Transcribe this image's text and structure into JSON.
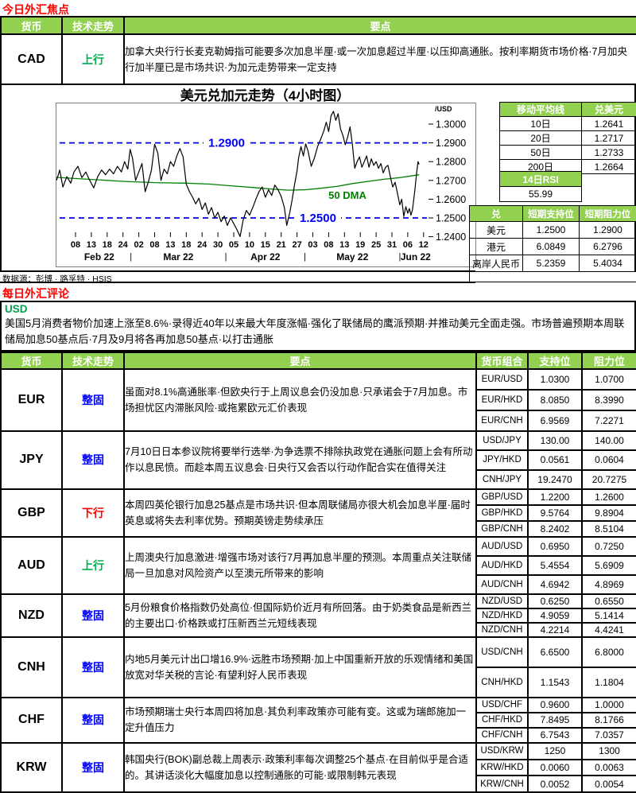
{
  "page": {
    "section1_title": "今日外汇焦点",
    "section2_title": "每日外汇评论",
    "data_source": "数据源：彭博 · 路孚特 · HSIS"
  },
  "colors": {
    "header_green": "#92D050",
    "up_green": "#00B050",
    "down_red": "#FF0000",
    "neutral_blue": "#0000FF",
    "annotation_blue": "#0000FF",
    "dma_green": "#008000",
    "price_black": "#000000"
  },
  "focus_table": {
    "headers": [
      "货币",
      "技术走势",
      "要点"
    ],
    "row": {
      "currency": "CAD",
      "trend": "上行",
      "trend_dir": "up",
      "note": "加拿大央行行长麦克勒姆指可能要多次加息半厘·或一次加息超过半厘·以压抑高通胀。按利率期货市场价格·7月加央行加半厘已是市场共识·为加元走势带来一定支持"
    }
  },
  "chart_data": {
    "type": "line",
    "title": "美元兑加元走势（4小时图）",
    "unit_label": "/USD",
    "y_ticks": [
      {
        "price": 1.3,
        "label": "1.3000"
      },
      {
        "price": 1.29,
        "label": "1.2900"
      },
      {
        "price": 1.28,
        "label": "1.2800"
      },
      {
        "price": 1.27,
        "label": "1.2700"
      },
      {
        "price": 1.26,
        "label": "1.2600"
      },
      {
        "price": 1.25,
        "label": "1.2500"
      },
      {
        "price": 1.24,
        "label": "1.2400"
      }
    ],
    "ylim": [
      1.24,
      1.3068
    ],
    "x_ticks": [
      {
        "u": 0,
        "label": "08"
      },
      {
        "u": 1,
        "label": "13"
      },
      {
        "u": 2,
        "label": "18"
      },
      {
        "u": 3,
        "label": "24"
      },
      {
        "u": 4,
        "label": "02"
      },
      {
        "u": 5,
        "label": "08"
      },
      {
        "u": 6,
        "label": "13"
      },
      {
        "u": 7,
        "label": "18"
      },
      {
        "u": 8,
        "label": "24"
      },
      {
        "u": 9,
        "label": "30"
      },
      {
        "u": 10,
        "label": "05"
      },
      {
        "u": 11,
        "label": "10"
      },
      {
        "u": 12,
        "label": "15"
      },
      {
        "u": 13,
        "label": "21"
      },
      {
        "u": 14,
        "label": "27"
      },
      {
        "u": 15,
        "label": "03"
      },
      {
        "u": 16,
        "label": "08"
      },
      {
        "u": 17,
        "label": "13"
      },
      {
        "u": 18,
        "label": "19"
      },
      {
        "u": 19,
        "label": "25"
      },
      {
        "u": 20,
        "label": "31"
      },
      {
        "u": 21,
        "label": "06"
      },
      {
        "u": 22,
        "label": "12"
      }
    ],
    "months": [
      {
        "u": 1.5,
        "label": "Feb 22"
      },
      {
        "u": 6.5,
        "label": "Mar 22"
      },
      {
        "u": 12,
        "label": "Apr 22"
      },
      {
        "u": 17.5,
        "label": "May 22"
      },
      {
        "u": 21.5,
        "label": "Jun 22"
      }
    ],
    "month_separator_positions": [
      3.5,
      9.5,
      14.5,
      20.5
    ],
    "annotations": [
      {
        "price": 1.29,
        "label": "1.2900"
      },
      {
        "price": 1.25,
        "label": "1.2500"
      }
    ],
    "series": [
      {
        "name": "USD/CAD",
        "points": [
          [
            -1.2,
            1.27
          ],
          [
            -1.0,
            1.2755
          ],
          [
            -0.8,
            1.2665
          ],
          [
            -0.55,
            1.272
          ],
          [
            -0.3,
            1.2685
          ],
          [
            -0.1,
            1.2745
          ],
          [
            0.15,
            1.2775
          ],
          [
            0.4,
            1.2715
          ],
          [
            0.65,
            1.2745
          ],
          [
            0.9,
            1.27
          ],
          [
            1.15,
            1.266
          ],
          [
            1.4,
            1.272
          ],
          [
            1.65,
            1.2755
          ],
          [
            1.9,
            1.273
          ],
          [
            2.15,
            1.276
          ],
          [
            2.4,
            1.2735
          ],
          [
            2.65,
            1.2775
          ],
          [
            2.9,
            1.2745
          ],
          [
            3.1,
            1.28
          ],
          [
            3.3,
            1.276
          ],
          [
            3.45,
            1.2865
          ],
          [
            3.6,
            1.282
          ],
          [
            3.8,
            1.27
          ],
          [
            4.0,
            1.2745
          ],
          [
            4.2,
            1.279
          ],
          [
            4.4,
            1.264
          ],
          [
            4.6,
            1.269
          ],
          [
            4.8,
            1.2755
          ],
          [
            5.0,
            1.2893
          ],
          [
            5.2,
            1.2845
          ],
          [
            5.4,
            1.27
          ],
          [
            5.6,
            1.276
          ],
          [
            5.8,
            1.2735
          ],
          [
            6.0,
            1.28
          ],
          [
            6.2,
            1.2775
          ],
          [
            6.4,
            1.283
          ],
          [
            6.6,
            1.287
          ],
          [
            6.8,
            1.2825
          ],
          [
            7.0,
            1.268
          ],
          [
            7.2,
            1.264
          ],
          [
            7.4,
            1.261
          ],
          [
            7.6,
            1.2575
          ],
          [
            7.8,
            1.2605
          ],
          [
            8.0,
            1.2545
          ],
          [
            8.2,
            1.258
          ],
          [
            8.4,
            1.252
          ],
          [
            8.6,
            1.2555
          ],
          [
            8.8,
            1.25
          ],
          [
            9.0,
            1.253
          ],
          [
            9.2,
            1.248
          ],
          [
            9.4,
            1.251
          ],
          [
            9.6,
            1.246
          ],
          [
            9.8,
            1.25
          ],
          [
            10.0,
            1.247
          ],
          [
            10.2,
            1.2438
          ],
          [
            10.4,
            1.2401
          ],
          [
            10.6,
            1.249
          ],
          [
            10.8,
            1.254
          ],
          [
            11.0,
            1.2515
          ],
          [
            11.2,
            1.2555
          ],
          [
            11.4,
            1.26
          ],
          [
            11.6,
            1.264
          ],
          [
            11.8,
            1.2665
          ],
          [
            12.0,
            1.261
          ],
          [
            12.2,
            1.265
          ],
          [
            12.4,
            1.262
          ],
          [
            12.6,
            1.2675
          ],
          [
            12.8,
            1.265
          ],
          [
            13.0,
            1.2615
          ],
          [
            13.2,
            1.2555
          ],
          [
            13.35,
            1.246
          ],
          [
            13.55,
            1.253
          ],
          [
            13.7,
            1.26
          ],
          [
            13.85,
            1.268
          ],
          [
            14.0,
            1.275
          ],
          [
            14.1,
            1.282
          ],
          [
            14.25,
            1.288
          ],
          [
            14.4,
            1.283
          ],
          [
            14.55,
            1.2895
          ],
          [
            14.7,
            1.2855
          ],
          [
            14.9,
            1.2775
          ],
          [
            15.1,
            1.282
          ],
          [
            15.3,
            1.288
          ],
          [
            15.5,
            1.292
          ],
          [
            15.7,
            1.2965
          ],
          [
            15.85,
            1.301
          ],
          [
            16.0,
            1.296
          ],
          [
            16.15,
            1.3045
          ],
          [
            16.3,
            1.3068
          ],
          [
            16.45,
            1.302
          ],
          [
            16.6,
            1.3055
          ],
          [
            16.75,
            1.2975
          ],
          [
            16.9,
            1.294
          ],
          [
            17.05,
            1.289
          ],
          [
            17.2,
            1.293
          ],
          [
            17.35,
            1.2985
          ],
          [
            17.5,
            1.289
          ],
          [
            17.65,
            1.2765
          ],
          [
            17.8,
            1.28
          ],
          [
            17.95,
            1.2825
          ],
          [
            18.1,
            1.277
          ],
          [
            18.25,
            1.28
          ],
          [
            18.4,
            1.283
          ],
          [
            18.55,
            1.277
          ],
          [
            18.7,
            1.2815
          ],
          [
            18.85,
            1.278
          ],
          [
            19.0,
            1.28
          ],
          [
            19.15,
            1.2765
          ],
          [
            19.3,
            1.279
          ],
          [
            19.45,
            1.274
          ],
          [
            19.6,
            1.277
          ],
          [
            19.75,
            1.278
          ],
          [
            19.9,
            1.272
          ],
          [
            20.05,
            1.2665
          ],
          [
            20.2,
            1.269
          ],
          [
            20.35,
            1.263
          ],
          [
            20.5,
            1.257
          ],
          [
            20.62,
            1.26
          ],
          [
            20.75,
            1.2508
          ],
          [
            20.88,
            1.256
          ],
          [
            21.0,
            1.2525
          ],
          [
            21.1,
            1.255
          ],
          [
            21.2,
            1.2515
          ],
          [
            21.3,
            1.2545
          ],
          [
            21.45,
            1.265
          ],
          [
            21.55,
            1.273
          ],
          [
            21.65,
            1.28
          ],
          [
            21.72,
            1.2785
          ]
        ]
      },
      {
        "name": "50 DMA",
        "label": "50 DMA",
        "points": [
          [
            -1.2,
            1.2716
          ],
          [
            1,
            1.2705
          ],
          [
            3,
            1.2695
          ],
          [
            5,
            1.2688
          ],
          [
            7,
            1.2685
          ],
          [
            8.5,
            1.268
          ],
          [
            10,
            1.267
          ],
          [
            11.5,
            1.266
          ],
          [
            12.5,
            1.2653
          ],
          [
            13.5,
            1.2648
          ],
          [
            14.5,
            1.265
          ],
          [
            15.5,
            1.2658
          ],
          [
            16.5,
            1.2668
          ],
          [
            17.5,
            1.2683
          ],
          [
            18.5,
            1.2695
          ],
          [
            19.5,
            1.2706
          ],
          [
            20.5,
            1.2715
          ],
          [
            21.72,
            1.273
          ]
        ]
      }
    ]
  },
  "ma_table": {
    "col_headers": [
      "移动平均线",
      "兑美元"
    ],
    "rows": [
      [
        "10日",
        "1.2641"
      ],
      [
        "20日",
        "1.2717"
      ],
      [
        "50日",
        "1.2733"
      ],
      [
        "200日",
        "1.2664"
      ]
    ]
  },
  "rsi_table": {
    "header": "14日RSI",
    "value": "55.99"
  },
  "sr_table": {
    "headers": [
      "兑",
      "短期支持位",
      "短期阻力位"
    ],
    "rows": [
      [
        "美元",
        "1.2500",
        "1.2900"
      ],
      [
        "港元",
        "6.0849",
        "6.2796"
      ],
      [
        "离岸人民币",
        "5.2359",
        "5.4034"
      ]
    ]
  },
  "usd_comment": {
    "currency": "USD",
    "text": "美国5月消费者物价加速上涨至8.6%·录得近40年以来最大年度涨幅·强化了联储局的鹰派预期·并推动美元全面走强。市场普遍预期本周联储局加息50基点后·7月及9月将各再加息50基点·以打击通胀"
  },
  "commentary_table": {
    "headers": [
      "货币",
      "技术走势",
      "要点",
      "货币组合",
      "支持位",
      "阻力位"
    ],
    "rows": [
      {
        "currency": "EUR",
        "trend": "整固",
        "trend_dir": "neutral",
        "note": "虽面对8.1%高通胀率·但欧央行于上周议息会仍没加息·只承诺会于7月加息。市场担忧区内滞胀风险·或拖累欧元汇价表现",
        "pairs": [
          [
            "EUR/USD",
            "1.0300",
            "1.0700"
          ],
          [
            "EUR/HKD",
            "8.0850",
            "8.3990"
          ],
          [
            "EUR/CNH",
            "6.9569",
            "7.2271"
          ]
        ]
      },
      {
        "currency": "JPY",
        "trend": "整固",
        "trend_dir": "neutral",
        "note": "7月10日日本参议院将要举行选举·为争选票不排除执政党在通胀问题上会有所动作以息民愤。而趁本周五议息会·日央行又会否以行动作配合实在值得关注",
        "pairs": [
          [
            "USD/JPY",
            "130.00",
            "140.00"
          ],
          [
            "JPY/HKD",
            "0.0561",
            "0.0604"
          ],
          [
            "CNH/JPY",
            "19.2470",
            "20.7275"
          ]
        ]
      },
      {
        "currency": "GBP",
        "trend": "下行",
        "trend_dir": "down",
        "note": "本周四英伦银行加息25基点是市场共识·但本周联储局亦很大机会加息半厘·届时英息或将失去利率优势。预期英镑走势续承压",
        "pairs": [
          [
            "GBP/USD",
            "1.2200",
            "1.2600"
          ],
          [
            "GBP/HKD",
            "9.5764",
            "9.8904"
          ],
          [
            "GBP/CNH",
            "8.2402",
            "8.5104"
          ]
        ]
      },
      {
        "currency": "AUD",
        "trend": "上行",
        "trend_dir": "up",
        "note": "上周澳央行加息激进·增强市场对该行7月再加息半厘的预测。本周重点关注联储局一旦加息对风险资产以至澳元所带来的影响",
        "pairs": [
          [
            "AUD/USD",
            "0.6950",
            "0.7250"
          ],
          [
            "AUD/HKD",
            "5.4554",
            "5.6909"
          ],
          [
            "AUD/CNH",
            "4.6942",
            "4.8969"
          ]
        ]
      },
      {
        "currency": "NZD",
        "trend": "整固",
        "trend_dir": "neutral",
        "note": "5月份粮食价格指数仍处高位·但国际奶价近月有所回落。由于奶类食品是新西兰的主要出口·价格跌或打压新西兰元短线表现",
        "pairs": [
          [
            "NZD/USD",
            "0.6250",
            "0.6550"
          ],
          [
            "NZD/HKD",
            "4.9059",
            "5.1414"
          ],
          [
            "NZD/CNH",
            "4.2214",
            "4.4241"
          ]
        ]
      },
      {
        "currency": "CNH",
        "trend": "整固",
        "trend_dir": "neutral",
        "note": "内地5月美元计出口增16.9%·远胜市场预期·加上中国重新开放的乐观情绪和美国放宽对华关税的言论·有望利好人民币表现",
        "pairs": [
          [
            "USD/CNH",
            "6.6500",
            "6.8000"
          ],
          [
            "CNH/HKD",
            "1.1543",
            "1.1804"
          ]
        ]
      },
      {
        "currency": "CHF",
        "trend": "整固",
        "trend_dir": "neutral",
        "note": "市场预期瑞士央行本周四将加息·其负利率政策亦可能有变。这或为瑞郎施加一定升值压力",
        "pairs": [
          [
            "USD/CHF",
            "0.9600",
            "1.0000"
          ],
          [
            "CHF/HKD",
            "7.8495",
            "8.1766"
          ],
          [
            "CHF/CNH",
            "6.7543",
            "7.0357"
          ]
        ]
      },
      {
        "currency": "KRW",
        "trend": "整固",
        "trend_dir": "neutral",
        "note": "韩国央行(BOK)副总裁上周表示·政策利率每次调整25个基点·在目前似乎是合适的。其讲话淡化大幅度加息以控制通胀的可能·或限制韩元表现",
        "pairs": [
          [
            "USD/KRW",
            "1250",
            "1300"
          ],
          [
            "KRW/HKD",
            "0.0060",
            "0.0063"
          ],
          [
            "KRW/CNH",
            "0.0052",
            "0.0054"
          ]
        ]
      }
    ]
  }
}
